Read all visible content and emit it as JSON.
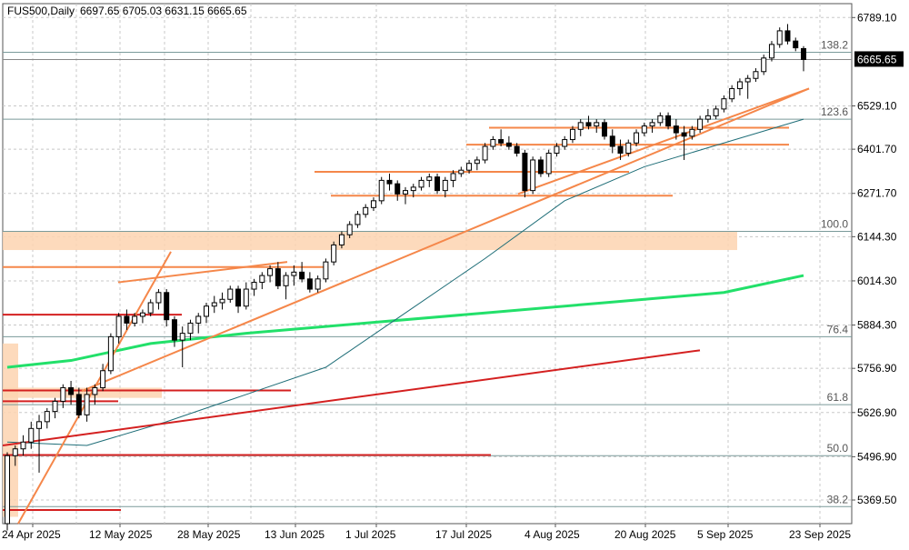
{
  "header": {
    "symbol": "FUS500,Daily",
    "ohlc": "6697.65 6705.03 6631.15 6665.65"
  },
  "price_badge": {
    "label": "6665.65",
    "bg": "#000000",
    "fg": "#ffffff"
  },
  "colors": {
    "grid": "#c8c8c8",
    "candle_up_fill": "#ffffff",
    "candle_down_fill": "#000000",
    "ma_short": "#1f6e78",
    "ma_long": "#22e06a",
    "trend_orange": "#f5874a",
    "trend_red": "#d42020",
    "zone": "#fdd3b0",
    "fib": "#7a9a9a"
  },
  "chart_data": {
    "type": "candlestick",
    "title": "FUS500,Daily",
    "ylim": [
      5300,
      6830
    ],
    "y_ticks": [
      "6789.10",
      "6529.10",
      "6401.70",
      "6271.70",
      "6144.30",
      "6014.30",
      "5884.30",
      "5756.90",
      "5626.90",
      "5496.90",
      "5369.50"
    ],
    "x_ticks": [
      "24 Apr 2025",
      "12 May 2025",
      "28 May 2025",
      "13 Jun 2025",
      "1 Jul 2025",
      "17 Jul 2025",
      "4 Aug 2025",
      "20 Aug 2025",
      "5 Sep 2025",
      "23 Sep 2025"
    ],
    "last_price": 6665.65,
    "fib_levels": [
      {
        "label": "138.2",
        "value": 6687
      },
      {
        "label": "123.6",
        "value": 6490
      },
      {
        "label": "100.0",
        "value": 6160
      },
      {
        "label": "76.4",
        "value": 5850
      },
      {
        "label": "61.8",
        "value": 5650
      },
      {
        "label": "50.0",
        "value": 5500
      },
      {
        "label": "38.2",
        "value": 5350
      }
    ],
    "candles": [
      [
        5300,
        5510,
        5280,
        5500
      ],
      [
        5500,
        5530,
        5470,
        5520
      ],
      [
        5520,
        5560,
        5500,
        5540
      ],
      [
        5540,
        5600,
        5520,
        5580
      ],
      [
        5580,
        5620,
        5450,
        5600
      ],
      [
        5600,
        5640,
        5580,
        5630
      ],
      [
        5630,
        5670,
        5610,
        5660
      ],
      [
        5660,
        5710,
        5640,
        5700
      ],
      [
        5700,
        5720,
        5650,
        5680
      ],
      [
        5680,
        5700,
        5610,
        5620
      ],
      [
        5620,
        5700,
        5600,
        5680
      ],
      [
        5680,
        5710,
        5650,
        5700
      ],
      [
        5700,
        5770,
        5690,
        5750
      ],
      [
        5750,
        5860,
        5740,
        5850
      ],
      [
        5850,
        5920,
        5830,
        5910
      ],
      [
        5910,
        5930,
        5870,
        5890
      ],
      [
        5890,
        5920,
        5880,
        5910
      ],
      [
        5910,
        5930,
        5890,
        5920
      ],
      [
        5920,
        5960,
        5910,
        5950
      ],
      [
        5950,
        5990,
        5930,
        5980
      ],
      [
        5980,
        5990,
        5880,
        5900
      ],
      [
        5900,
        5910,
        5820,
        5840
      ],
      [
        5840,
        5880,
        5760,
        5860
      ],
      [
        5860,
        5900,
        5840,
        5890
      ],
      [
        5890,
        5920,
        5860,
        5910
      ],
      [
        5910,
        5950,
        5890,
        5940
      ],
      [
        5940,
        5970,
        5920,
        5950
      ],
      [
        5950,
        5980,
        5930,
        5960
      ],
      [
        5960,
        6000,
        5950,
        5990
      ],
      [
        5990,
        6000,
        5920,
        5940
      ],
      [
        5940,
        6010,
        5930,
        5990
      ],
      [
        5990,
        6020,
        5970,
        6010
      ],
      [
        6010,
        6040,
        5990,
        6030
      ],
      [
        6030,
        6060,
        6010,
        6050
      ],
      [
        6050,
        6070,
        5990,
        6000
      ],
      [
        6000,
        6040,
        5960,
        6030
      ],
      [
        6030,
        6060,
        6000,
        6040
      ],
      [
        6040,
        6070,
        6010,
        6020
      ],
      [
        6020,
        6040,
        5980,
        5990
      ],
      [
        5990,
        6030,
        5980,
        6020
      ],
      [
        6020,
        6080,
        6010,
        6070
      ],
      [
        6070,
        6130,
        6060,
        6120
      ],
      [
        6120,
        6160,
        6110,
        6150
      ],
      [
        6150,
        6190,
        6140,
        6180
      ],
      [
        6180,
        6220,
        6170,
        6210
      ],
      [
        6210,
        6240,
        6200,
        6230
      ],
      [
        6230,
        6260,
        6220,
        6250
      ],
      [
        6250,
        6320,
        6240,
        6310
      ],
      [
        6310,
        6330,
        6280,
        6300
      ],
      [
        6300,
        6310,
        6250,
        6270
      ],
      [
        6270,
        6290,
        6240,
        6280
      ],
      [
        6280,
        6300,
        6260,
        6290
      ],
      [
        6290,
        6320,
        6280,
        6310
      ],
      [
        6310,
        6330,
        6290,
        6320
      ],
      [
        6320,
        6330,
        6270,
        6280
      ],
      [
        6280,
        6320,
        6260,
        6310
      ],
      [
        6310,
        6340,
        6290,
        6330
      ],
      [
        6330,
        6350,
        6320,
        6340
      ],
      [
        6340,
        6370,
        6330,
        6360
      ],
      [
        6360,
        6380,
        6340,
        6370
      ],
      [
        6370,
        6420,
        6360,
        6410
      ],
      [
        6410,
        6440,
        6400,
        6430
      ],
      [
        6430,
        6460,
        6410,
        6420
      ],
      [
        6420,
        6440,
        6400,
        6410
      ],
      [
        6410,
        6420,
        6380,
        6390
      ],
      [
        6390,
        6400,
        6260,
        6280
      ],
      [
        6280,
        6380,
        6270,
        6370
      ],
      [
        6370,
        6380,
        6320,
        6330
      ],
      [
        6330,
        6400,
        6320,
        6390
      ],
      [
        6390,
        6420,
        6380,
        6410
      ],
      [
        6410,
        6440,
        6400,
        6430
      ],
      [
        6430,
        6470,
        6420,
        6460
      ],
      [
        6460,
        6490,
        6440,
        6480
      ],
      [
        6480,
        6500,
        6460,
        6470
      ],
      [
        6470,
        6490,
        6450,
        6480
      ],
      [
        6480,
        6490,
        6430,
        6440
      ],
      [
        6440,
        6460,
        6390,
        6410
      ],
      [
        6410,
        6430,
        6370,
        6390
      ],
      [
        6390,
        6430,
        6380,
        6420
      ],
      [
        6420,
        6460,
        6410,
        6450
      ],
      [
        6450,
        6480,
        6440,
        6470
      ],
      [
        6470,
        6490,
        6450,
        6480
      ],
      [
        6480,
        6510,
        6470,
        6500
      ],
      [
        6500,
        6510,
        6460,
        6470
      ],
      [
        6470,
        6490,
        6430,
        6450
      ],
      [
        6450,
        6470,
        6370,
        6440
      ],
      [
        6440,
        6470,
        6430,
        6460
      ],
      [
        6460,
        6500,
        6450,
        6490
      ],
      [
        6490,
        6520,
        6480,
        6500
      ],
      [
        6500,
        6530,
        6490,
        6520
      ],
      [
        6520,
        6560,
        6510,
        6550
      ],
      [
        6550,
        6590,
        6540,
        6580
      ],
      [
        6580,
        6610,
        6560,
        6600
      ],
      [
        6600,
        6620,
        6550,
        6610
      ],
      [
        6610,
        6640,
        6600,
        6630
      ],
      [
        6630,
        6680,
        6620,
        6670
      ],
      [
        6670,
        6720,
        6660,
        6710
      ],
      [
        6710,
        6760,
        6700,
        6750
      ],
      [
        6750,
        6770,
        6710,
        6720
      ],
      [
        6720,
        6730,
        6690,
        6700
      ],
      [
        6697.65,
        6705.03,
        6631.15,
        6665.65
      ]
    ],
    "ma_short": [
      [
        0,
        5540
      ],
      [
        10,
        5530
      ],
      [
        20,
        5600
      ],
      [
        30,
        5680
      ],
      [
        40,
        5760
      ],
      [
        50,
        5920
      ],
      [
        60,
        6080
      ],
      [
        70,
        6250
      ],
      [
        80,
        6350
      ],
      [
        90,
        6420
      ],
      [
        100,
        6490
      ]
    ],
    "ma_long": [
      [
        0,
        5760
      ],
      [
        8,
        5780
      ],
      [
        18,
        5830
      ],
      [
        30,
        5860
      ],
      [
        45,
        5890
      ],
      [
        60,
        5920
      ],
      [
        75,
        5950
      ],
      [
        90,
        5980
      ],
      [
        100,
        6030
      ]
    ]
  }
}
